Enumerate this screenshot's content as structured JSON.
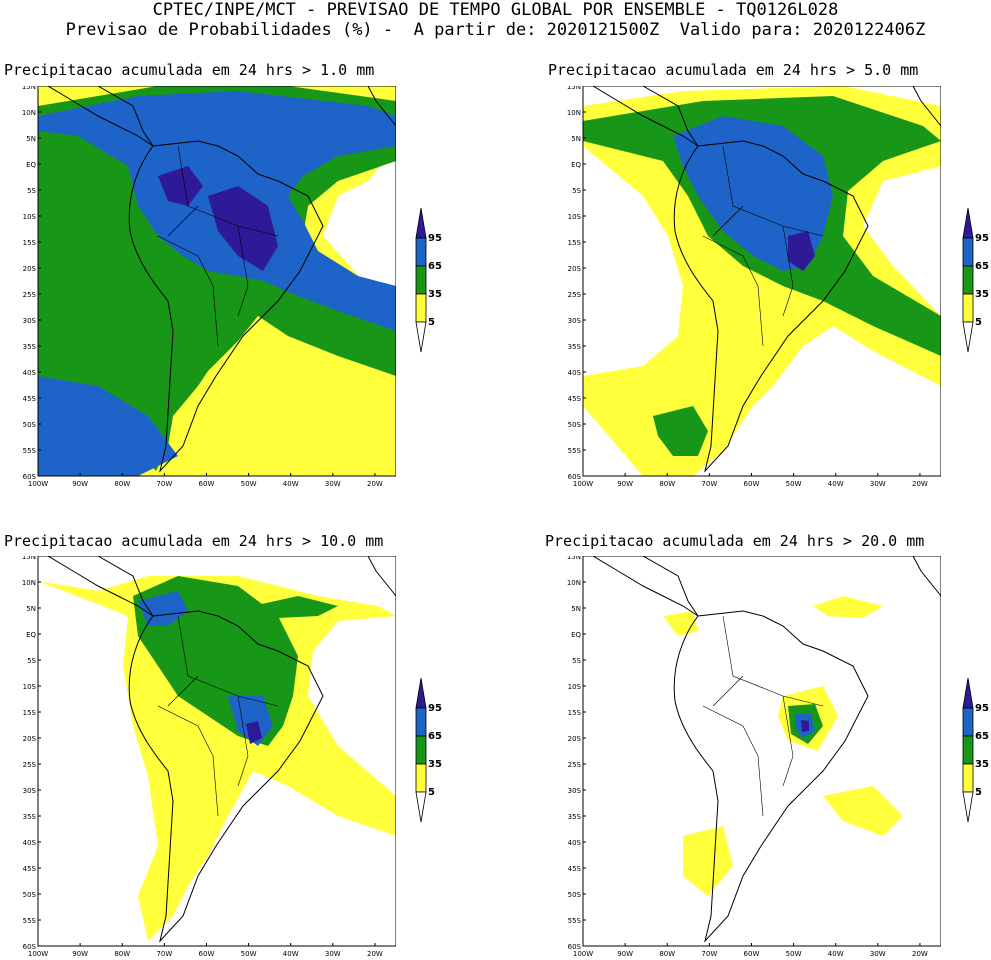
{
  "header": {
    "line1": "CPTEC/INPE/MCT - PREVISAO DE TEMPO GLOBAL POR ENSEMBLE - TQ0126L028",
    "line2": "Previsao de Probabilidades (%) -  A partir de: 2020121500Z  Valido para: 2020122406Z"
  },
  "legend": {
    "levels": [
      "95",
      "65",
      "35",
      "5"
    ],
    "colors": {
      "lev95": "#2e1a96",
      "lev65": "#1e64c8",
      "lev35": "#189618",
      "lev5": "#ffff3c",
      "ocean": "#ffffff",
      "coast": "#000000"
    }
  },
  "axes": {
    "lat_labels": [
      "15N",
      "10N",
      "5N",
      "EQ",
      "5S",
      "10S",
      "15S",
      "20S",
      "25S",
      "30S",
      "35S",
      "40S",
      "45S",
      "50S",
      "55S",
      "60S"
    ],
    "lon_labels": [
      "100W",
      "90W",
      "80W",
      "70W",
      "60W",
      "50W",
      "40W",
      "30W",
      "20W"
    ]
  },
  "panels": [
    {
      "title": "Precipitacao acumulada em 24 hrs > 1.0 mm"
    },
    {
      "title": "Precipitacao acumulada em 24 hrs > 5.0 mm"
    },
    {
      "title": "Precipitacao acumulada em 24 hrs > 10.0 mm"
    },
    {
      "title": "Precipitacao acumulada em 24 hrs > 20.0 mm"
    }
  ]
}
